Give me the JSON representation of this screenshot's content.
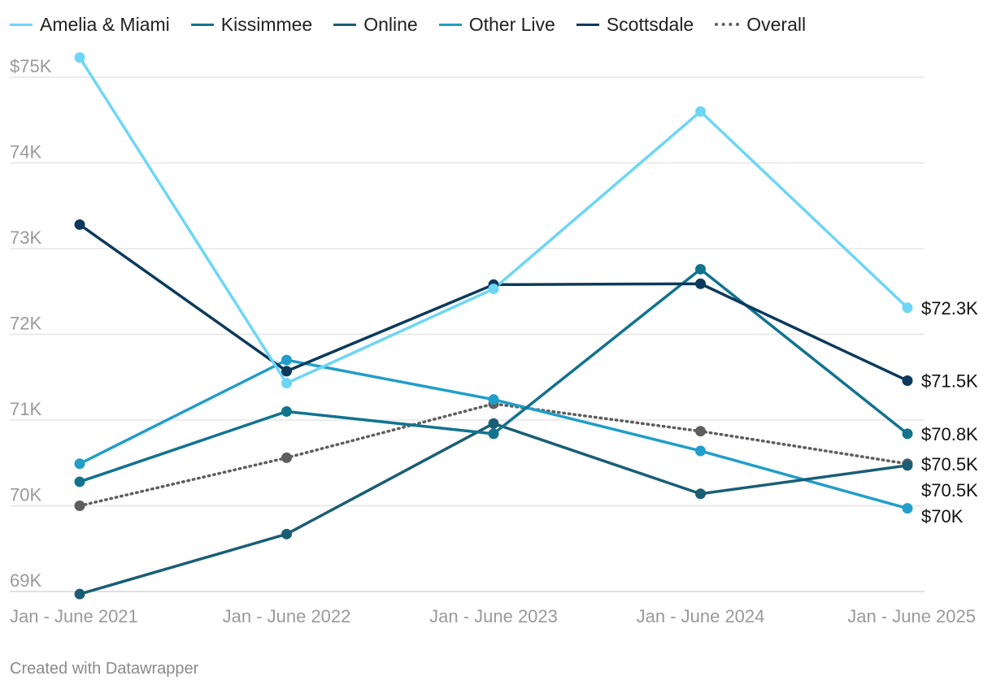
{
  "chart_data": {
    "type": "line",
    "categories": [
      "Jan - June 2021",
      "Jan - June 2022",
      "Jan - June 2023",
      "Jan - June 2024",
      "Jan - June 2025"
    ],
    "ylim": [
      69000,
      75000
    ],
    "y_ticks": [
      {
        "value": 69000,
        "label": "69K"
      },
      {
        "value": 70000,
        "label": "70K"
      },
      {
        "value": 71000,
        "label": "71K"
      },
      {
        "value": 72000,
        "label": "72K"
      },
      {
        "value": 73000,
        "label": "73K"
      },
      {
        "value": 74000,
        "label": "74K"
      },
      {
        "value": 75000,
        "label": "$75K"
      }
    ],
    "grid": true,
    "legend_position": "top-left",
    "series": [
      {
        "name": "Amelia & Miami",
        "color": "#6dd6f7",
        "dotted": false,
        "values": [
          75230,
          71430,
          72530,
          74600,
          72310
        ],
        "end_label": "$72.3K"
      },
      {
        "name": "Kissimmee",
        "color": "#12738f",
        "dotted": false,
        "values": [
          70280,
          71100,
          70840,
          72760,
          70840
        ],
        "end_label": "$70.8K"
      },
      {
        "name": "Online",
        "color": "#1a5e75",
        "dotted": false,
        "values": [
          68970,
          69670,
          70960,
          70140,
          70470
        ],
        "end_label": "$70.5K"
      },
      {
        "name": "Other Live",
        "color": "#219ec9",
        "dotted": false,
        "values": [
          70490,
          71700,
          71240,
          70640,
          69970
        ],
        "end_label": "$70K"
      },
      {
        "name": "Scottsdale",
        "color": "#0b3a5c",
        "dotted": false,
        "values": [
          73280,
          71570,
          72580,
          72590,
          71460
        ],
        "end_label": "$71.5K"
      },
      {
        "name": "Overall",
        "color": "#5e5e5e",
        "dotted": true,
        "values": [
          70000,
          70560,
          71190,
          70870,
          70490
        ],
        "end_label": "$70.5K"
      }
    ]
  },
  "footer": {
    "credit": "Created with Datawrapper"
  }
}
